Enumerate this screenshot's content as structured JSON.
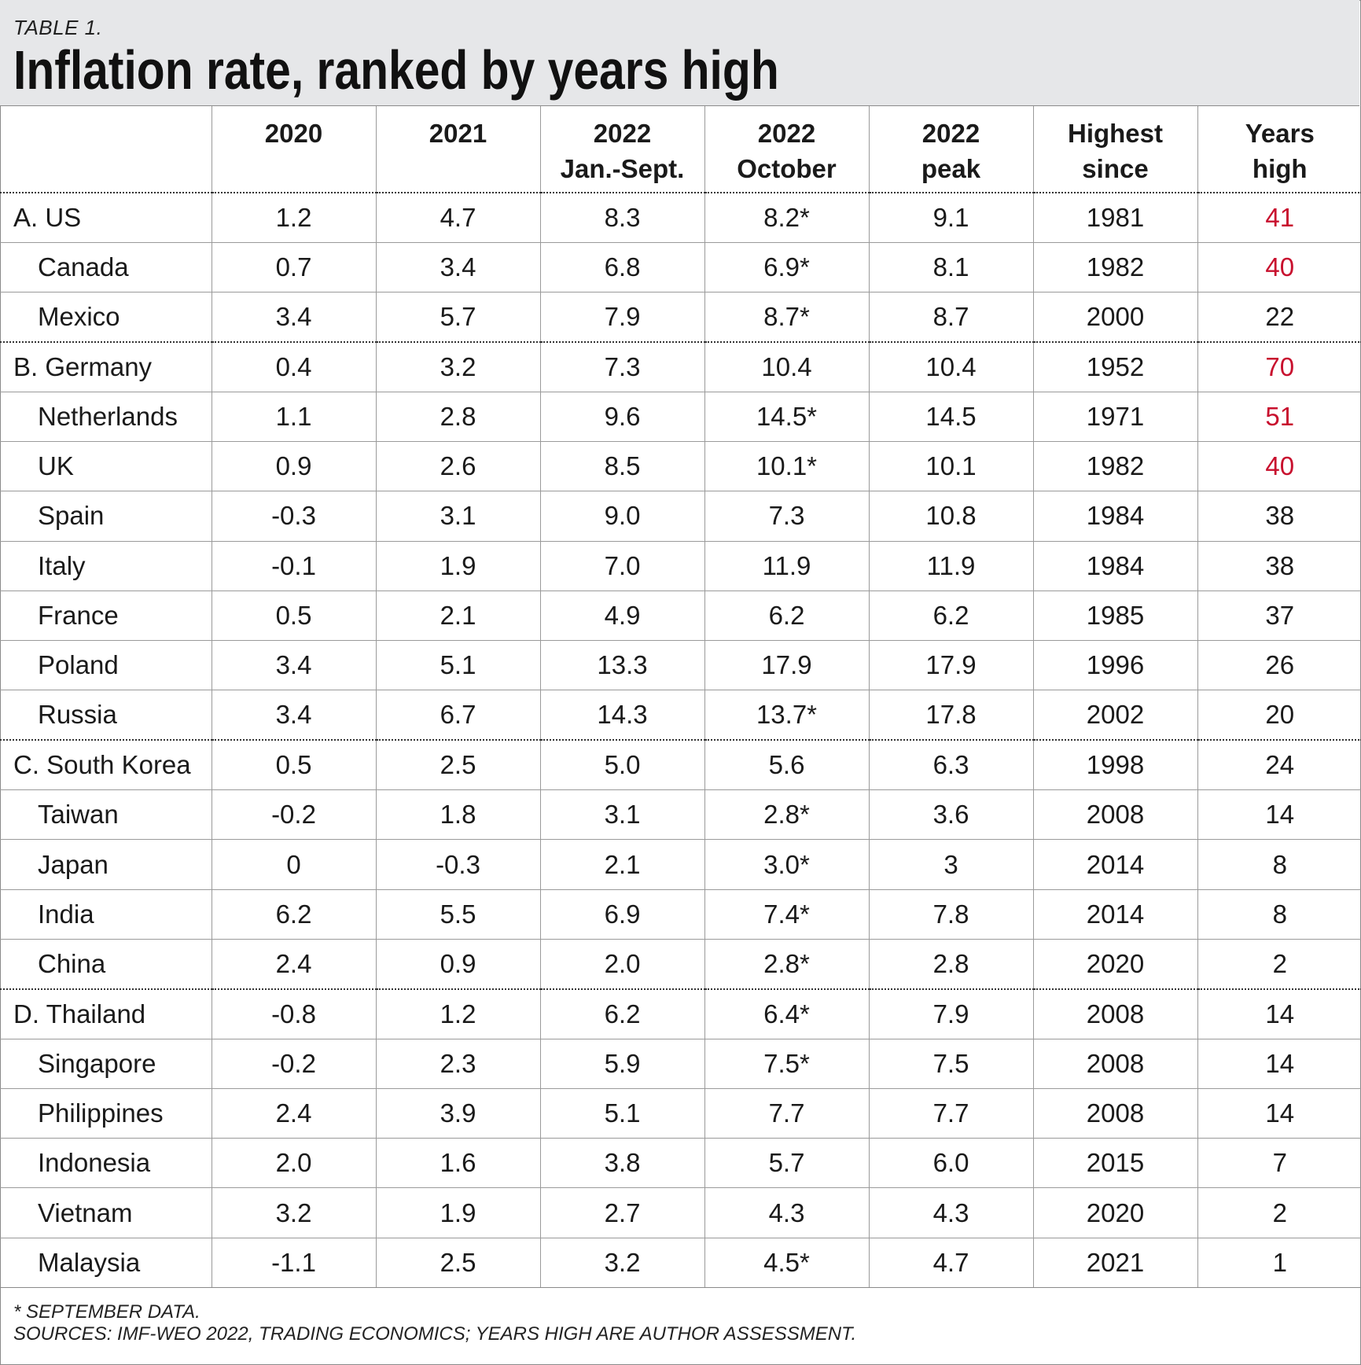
{
  "header": {
    "label": "TABLE 1.",
    "title": "Inflation rate, ranked by years high"
  },
  "table": {
    "columns": [
      {
        "line1": "",
        "line2": ""
      },
      {
        "line1": "2020",
        "line2": ""
      },
      {
        "line1": "2021",
        "line2": ""
      },
      {
        "line1": "2022",
        "line2": "Jan.-Sept."
      },
      {
        "line1": "2022",
        "line2": "October"
      },
      {
        "line1": "2022",
        "line2": "peak"
      },
      {
        "line1": "Highest",
        "line2": "since"
      },
      {
        "line1": "Years",
        "line2": "high"
      }
    ],
    "rows": [
      {
        "name": "A. US",
        "group_start": true,
        "values": [
          "1.2",
          "4.7",
          "8.3",
          "8.2*",
          "9.1",
          "1981",
          "41"
        ],
        "highlight": true
      },
      {
        "name": "Canada",
        "group_start": false,
        "values": [
          "0.7",
          "3.4",
          "6.8",
          "6.9*",
          "8.1",
          "1982",
          "40"
        ],
        "highlight": true
      },
      {
        "name": "Mexico",
        "group_start": false,
        "values": [
          "3.4",
          "5.7",
          "7.9",
          "8.7*",
          "8.7",
          "2000",
          "22"
        ],
        "highlight": false,
        "group_end": true
      },
      {
        "name": "B. Germany",
        "group_start": true,
        "values": [
          "0.4",
          "3.2",
          "7.3",
          "10.4",
          "10.4",
          "1952",
          "70"
        ],
        "highlight": true
      },
      {
        "name": "Netherlands",
        "group_start": false,
        "values": [
          "1.1",
          "2.8",
          "9.6",
          "14.5*",
          "14.5",
          "1971",
          "51"
        ],
        "highlight": true
      },
      {
        "name": "UK",
        "group_start": false,
        "values": [
          "0.9",
          "2.6",
          "8.5",
          "10.1*",
          "10.1",
          "1982",
          "40"
        ],
        "highlight": true
      },
      {
        "name": "Spain",
        "group_start": false,
        "values": [
          "-0.3",
          "3.1",
          "9.0",
          "7.3",
          "10.8",
          "1984",
          "38"
        ],
        "highlight": false
      },
      {
        "name": "Italy",
        "group_start": false,
        "values": [
          "-0.1",
          "1.9",
          "7.0",
          "11.9",
          "11.9",
          "1984",
          "38"
        ],
        "highlight": false
      },
      {
        "name": "France",
        "group_start": false,
        "values": [
          "0.5",
          "2.1",
          "4.9",
          "6.2",
          "6.2",
          "1985",
          "37"
        ],
        "highlight": false
      },
      {
        "name": "Poland",
        "group_start": false,
        "values": [
          "3.4",
          "5.1",
          "13.3",
          "17.9",
          "17.9",
          "1996",
          "26"
        ],
        "highlight": false
      },
      {
        "name": "Russia",
        "group_start": false,
        "values": [
          "3.4",
          "6.7",
          "14.3",
          "13.7*",
          "17.8",
          "2002",
          "20"
        ],
        "highlight": false,
        "group_end": true
      },
      {
        "name": "C. South Korea",
        "group_start": true,
        "values": [
          "0.5",
          "2.5",
          "5.0",
          "5.6",
          "6.3",
          "1998",
          "24"
        ],
        "highlight": false
      },
      {
        "name": "Taiwan",
        "group_start": false,
        "values": [
          "-0.2",
          "1.8",
          "3.1",
          "2.8*",
          "3.6",
          "2008",
          "14"
        ],
        "highlight": false
      },
      {
        "name": "Japan",
        "group_start": false,
        "values": [
          "0",
          "-0.3",
          "2.1",
          "3.0*",
          "3",
          "2014",
          "8"
        ],
        "highlight": false
      },
      {
        "name": "India",
        "group_start": false,
        "values": [
          "6.2",
          "5.5",
          "6.9",
          "7.4*",
          "7.8",
          "2014",
          "8"
        ],
        "highlight": false
      },
      {
        "name": "China",
        "group_start": false,
        "values": [
          "2.4",
          "0.9",
          "2.0",
          "2.8*",
          "2.8",
          "2020",
          "2"
        ],
        "highlight": false,
        "group_end": true
      },
      {
        "name": "D. Thailand",
        "group_start": true,
        "values": [
          "-0.8",
          "1.2",
          "6.2",
          "6.4*",
          "7.9",
          "2008",
          "14"
        ],
        "highlight": false
      },
      {
        "name": "Singapore",
        "group_start": false,
        "values": [
          "-0.2",
          "2.3",
          "5.9",
          "7.5*",
          "7.5",
          "2008",
          "14"
        ],
        "highlight": false
      },
      {
        "name": "Philippines",
        "group_start": false,
        "values": [
          "2.4",
          "3.9",
          "5.1",
          "7.7",
          "7.7",
          "2008",
          "14"
        ],
        "highlight": false
      },
      {
        "name": "Indonesia",
        "group_start": false,
        "values": [
          "2.0",
          "1.6",
          "3.8",
          "5.7",
          "6.0",
          "2015",
          "7"
        ],
        "highlight": false
      },
      {
        "name": "Vietnam",
        "group_start": false,
        "values": [
          "3.2",
          "1.9",
          "2.7",
          "4.3",
          "4.3",
          "2020",
          "2"
        ],
        "highlight": false
      },
      {
        "name": "Malaysia",
        "group_start": false,
        "values": [
          "-1.1",
          "2.5",
          "3.2",
          "4.5*",
          "4.7",
          "2021",
          "1"
        ],
        "highlight": false
      }
    ]
  },
  "footnotes": {
    "note": "* SEPTEMBER DATA.",
    "sources": "SOURCES: IMF-WEO 2022, TRADING ECONOMICS; YEARS HIGH ARE AUTHOR ASSESSMENT."
  },
  "colors": {
    "header_bg": "#e6e7e9",
    "highlight": "#c8102e"
  }
}
